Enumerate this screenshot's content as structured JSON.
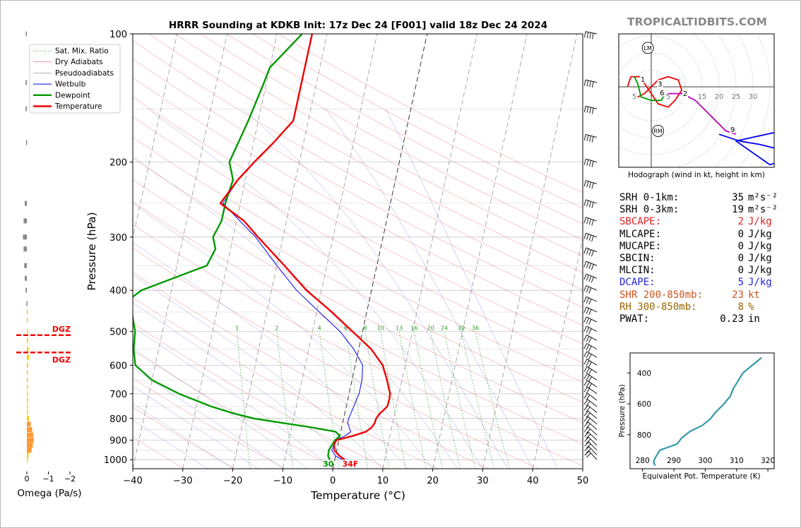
{
  "title": "HRRR Sounding at KDKB Init: 17z Dec 24 [F001] valid 18z Dec 24 2024",
  "brand": "TROPICALTIDBITS.COM",
  "colors": {
    "temperature": "#ee0000",
    "dewpoint": "#009900",
    "wetbulb": "#0000ee",
    "dry_adiabat": "#e06060",
    "moist_adiabat": "#8080dd",
    "mix_ratio": "#2a9a2a",
    "isotherm": "#777777",
    "theta_e": "#3399aa",
    "hodo_0_3": "#ee0000",
    "hodo_3_6": "#009900",
    "hodo_6_9": "#bb00bb",
    "hodo_9_12": "#0000ee",
    "dgz": "#ee0000",
    "omega_neg": "#ffcc00",
    "omega_pos": "#ffb000",
    "brand": "#888888"
  },
  "chart_data": [
    {
      "type": "line",
      "subtype": "skew-t",
      "title": "HRRR Sounding at KDKB Init: 17z Dec 24 [F001] valid 18z Dec 24 2024",
      "xlabel": "Temperature (°C)",
      "ylabel": "Pressure (hPa)",
      "xlim": [
        -40,
        50
      ],
      "ylim": [
        1050,
        100
      ],
      "y_scale": "log",
      "x_ticks": [
        -40,
        -30,
        -20,
        -10,
        0,
        10,
        20,
        30,
        40,
        50
      ],
      "y_ticks": [
        100,
        200,
        300,
        400,
        500,
        600,
        700,
        800,
        900,
        1000
      ],
      "legend": {
        "placement": "top-left",
        "entries": [
          "Sat. Mix. Ratio",
          "Dry Adiabats",
          "Pseudoadiabats",
          "Wetbulb",
          "Dewpoint",
          "Temperature"
        ]
      },
      "mixing_ratio_labels": [
        "1",
        "2",
        "4",
        "6",
        "8",
        "10",
        "13",
        "16",
        "20",
        "24",
        "30",
        "36"
      ],
      "surface_labels": {
        "dewpoint": "30",
        "temperature": "34F"
      },
      "series": [
        {
          "name": "Temperature",
          "pressure": [
            1000,
            980,
            950,
            920,
            900,
            880,
            860,
            840,
            820,
            800,
            780,
            750,
            720,
            700,
            650,
            600,
            550,
            500,
            450,
            400,
            350,
            300,
            275,
            250,
            220,
            200,
            180,
            160,
            140,
            120,
            100
          ],
          "temp": [
            2.0,
            0.8,
            -0.5,
            -0.8,
            -0.5,
            2.5,
            5.0,
            6.0,
            6.4,
            6.5,
            7.0,
            8.2,
            8.3,
            8.2,
            7.0,
            5.5,
            2.5,
            -2.0,
            -7.0,
            -13.0,
            -18.5,
            -25.0,
            -28.5,
            -34.0,
            -31.5,
            -29.0,
            -26.0,
            -23.0,
            -23.0,
            -23.0,
            -23.0
          ]
        },
        {
          "name": "Dewpoint",
          "pressure": [
            1000,
            980,
            950,
            900,
            880,
            860,
            840,
            820,
            800,
            780,
            750,
            700,
            650,
            600,
            550,
            500,
            450,
            420,
            400,
            350,
            320,
            300,
            275,
            250,
            220,
            200,
            160,
            130,
            120,
            100
          ],
          "dwpt": [
            -1.0,
            -1.5,
            -1.6,
            -0.8,
            0.0,
            -1.0,
            -6.0,
            -12.0,
            -18.0,
            -22.0,
            -27.0,
            -34.0,
            -40.0,
            -44.0,
            -45.0,
            -45.5,
            -47.0,
            -48.0,
            -46.0,
            -34.0,
            -33.0,
            -34.0,
            -33.0,
            -33.0,
            -32.5,
            -34.0,
            -32.0,
            -30.5,
            -30.0,
            -25.0
          ]
        },
        {
          "name": "Wetbulb",
          "pressure": [
            1000,
            980,
            950,
            900,
            880,
            860,
            840,
            820,
            800,
            780,
            750,
            700,
            650,
            600,
            550,
            500,
            450,
            400,
            350,
            300,
            250,
            220,
            200,
            180,
            160,
            140,
            120,
            100
          ],
          "temp": [
            1.5,
            0.0,
            -1.0,
            -0.6,
            1.0,
            2.0,
            1.5,
            1.0,
            1.0,
            1.2,
            1.5,
            2.0,
            2.0,
            1.5,
            -1.0,
            -4.5,
            -9.5,
            -15.0,
            -20.0,
            -25.5,
            -33.5,
            -31.5,
            -29.0,
            -26.0,
            -23.0,
            -23.0,
            -23.0,
            -23.0
          ]
        }
      ]
    },
    {
      "type": "line",
      "subtype": "hodograph",
      "title": "Hodograph (wind in kt, height in km)",
      "range_ring_labels": [
        "5",
        "5",
        "15",
        "20",
        "25",
        "30"
      ],
      "storm_markers": [
        "LM",
        "RM"
      ],
      "height_labels": [
        "1",
        "2",
        "3",
        "6",
        "9"
      ],
      "series": [
        {
          "name": "0-3 km",
          "u": [
            -4,
            -2,
            2,
            5,
            8,
            9,
            7,
            5,
            2,
            -2,
            -3,
            -6,
            -7
          ],
          "v": [
            -3,
            -2,
            2,
            3,
            2,
            -1,
            -4,
            -6,
            -5,
            1,
            3,
            3,
            0
          ]
        },
        {
          "name": "3-6 km",
          "u": [
            -5,
            -4,
            -3,
            0,
            3,
            4
          ],
          "v": [
            3,
            1,
            -3,
            -4,
            -4,
            -2
          ]
        },
        {
          "name": "6-9 km",
          "u": [
            5,
            9,
            13,
            17,
            20,
            22,
            25
          ],
          "v": [
            -2,
            -2,
            -4,
            -8,
            -11,
            -13,
            -14
          ]
        },
        {
          "name": "9-12 km",
          "u": [
            20,
            26,
            32,
            44,
            43,
            25,
            35,
            47
          ],
          "v": [
            -14,
            -16,
            -17,
            -20,
            -12,
            -16,
            -23,
            -19
          ]
        }
      ]
    },
    {
      "type": "line",
      "subtype": "theta-e profile",
      "xlabel": "Equivalent Pot. Temperature (K)",
      "ylabel": "Pressure (hPa)",
      "xlim": [
        276,
        322
      ],
      "ylim": [
        1000,
        300
      ],
      "x_ticks": [
        280,
        290,
        300,
        310,
        320
      ],
      "y_ticks": [
        400,
        600,
        800
      ],
      "series": [
        {
          "name": "Theta-E",
          "pressure": [
            1000,
            975,
            950,
            900,
            860,
            820,
            780,
            740,
            700,
            650,
            600,
            550,
            500,
            450,
            400,
            350,
            300
          ],
          "theta_e": [
            284,
            283.5,
            284,
            285.5,
            291,
            292.5,
            295,
            299,
            301.5,
            303.5,
            306,
            308,
            309,
            310.5,
            312,
            315,
            318
          ]
        }
      ]
    },
    {
      "type": "bar",
      "subtype": "omega profile",
      "xlabel": "Omega (Pa/s)",
      "x_ticks": [
        "0",
        "−1",
        "−2"
      ],
      "xlim": [
        0.3,
        -2.5
      ],
      "dgz_label": "DGZ",
      "dgz_pressures": [
        510,
        560
      ],
      "pressure": [
        100,
        130,
        150,
        180,
        250,
        275,
        300,
        320,
        350,
        375,
        400,
        430,
        450,
        470,
        500,
        525,
        550,
        575,
        600,
        625,
        650,
        675,
        700,
        725,
        750,
        775,
        800,
        825,
        850,
        875,
        900,
        925,
        950,
        975,
        1000
      ],
      "omega": [
        0.05,
        0.06,
        0.06,
        0.04,
        0.1,
        0.15,
        0.18,
        0.15,
        0.12,
        0.1,
        0.06,
        0.02,
        -0.02,
        -0.04,
        -0.05,
        -0.06,
        -0.08,
        -0.1,
        -0.06,
        -0.04,
        -0.04,
        -0.03,
        -0.02,
        -0.01,
        -0.02,
        -0.05,
        -0.1,
        -0.18,
        -0.25,
        -0.3,
        -0.32,
        -0.28,
        -0.22,
        -0.08,
        0.0
      ]
    }
  ],
  "wind_barbs_hpa": [
    100,
    130,
    150,
    175,
    200,
    225,
    250,
    275,
    300,
    325,
    350,
    375,
    400,
    425,
    450,
    475,
    500,
    525,
    550,
    575,
    600,
    625,
    650,
    675,
    700,
    725,
    750,
    775,
    800,
    825,
    850,
    875,
    900,
    925,
    950,
    975,
    1000
  ],
  "stats": [
    {
      "label": "SRH 0-1km:",
      "value": "35",
      "unit": "m²s⁻²",
      "color": "#000000"
    },
    {
      "label": "SRH 0-3km:",
      "value": "19",
      "unit": "m²s⁻²",
      "color": "#000000"
    },
    {
      "label": "SBCAPE:",
      "value": "2",
      "unit": "J/kg",
      "color": "#dd2222"
    },
    {
      "label": "MLCAPE:",
      "value": "0",
      "unit": "J/kg",
      "color": "#000000"
    },
    {
      "label": "MUCAPE:",
      "value": "0",
      "unit": "J/kg",
      "color": "#000000"
    },
    {
      "label": "SBCIN:",
      "value": "0",
      "unit": "J/kg",
      "color": "#000000"
    },
    {
      "label": "MLCIN:",
      "value": "0",
      "unit": "J/kg",
      "color": "#000000"
    },
    {
      "label": "DCAPE:",
      "value": "5",
      "unit": "J/kg",
      "color": "#2222dd"
    },
    {
      "label": "SHR 200-850mb:",
      "value": "23",
      "unit": "kt",
      "color": "#cc5522"
    },
    {
      "label": "RH 300-850mb:",
      "value": "8",
      "unit": "%",
      "color": "#996600"
    },
    {
      "label": "PWAT:",
      "value": "0.23",
      "unit": "in",
      "color": "#000000"
    }
  ]
}
